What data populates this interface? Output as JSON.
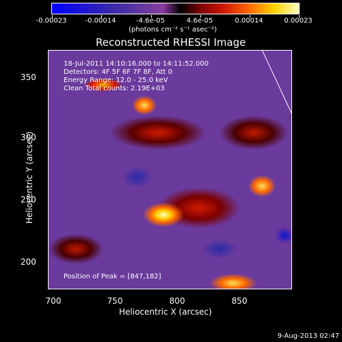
{
  "colorbar": {
    "tick_labels": [
      "-0.00023",
      "-0.00014",
      "-4.6e-05",
      "4.6e-05",
      "0.00014",
      "0.00023"
    ],
    "units": "(photons cm⁻² s⁻¹ asec⁻²)"
  },
  "image": {
    "title": "Reconstructed RHESSI Image",
    "time_range": "18-Jul-2011 14:10:16.000 to 14:11:52.000",
    "detectors": "Detectors: 4F 5F 6F 7F 8F, Att 0",
    "energy": "Energy Range: 12.0 - 25.0 keV",
    "clean": "Clean     Total counts: 2.19E+03",
    "peak": "Position of Peak = [847,182]"
  },
  "axes": {
    "xlabel": "Heliocentric X (arcsec)",
    "ylabel": "Heliocentric Y (arcsec)",
    "x_ticks": [
      "700",
      "750",
      "800",
      "850"
    ],
    "y_ticks": [
      "350",
      "300",
      "250",
      "200"
    ]
  },
  "footer": {
    "date": "9-Aug-2013 02:47"
  }
}
